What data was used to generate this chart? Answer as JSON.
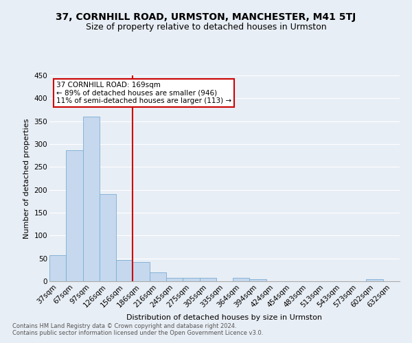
{
  "title": "37, CORNHILL ROAD, URMSTON, MANCHESTER, M41 5TJ",
  "subtitle": "Size of property relative to detached houses in Urmston",
  "xlabel": "Distribution of detached houses by size in Urmston",
  "ylabel": "Number of detached properties",
  "footnote": "Contains HM Land Registry data © Crown copyright and database right 2024.\nContains public sector information licensed under the Open Government Licence v3.0.",
  "categories": [
    "37sqm",
    "67sqm",
    "97sqm",
    "126sqm",
    "156sqm",
    "186sqm",
    "216sqm",
    "245sqm",
    "275sqm",
    "305sqm",
    "335sqm",
    "364sqm",
    "394sqm",
    "424sqm",
    "454sqm",
    "483sqm",
    "513sqm",
    "543sqm",
    "573sqm",
    "602sqm",
    "632sqm"
  ],
  "values": [
    57,
    287,
    360,
    190,
    47,
    42,
    20,
    8,
    8,
    8,
    0,
    8,
    5,
    0,
    0,
    0,
    0,
    0,
    0,
    5,
    0
  ],
  "bar_color": "#c5d8ee",
  "bar_edge_color": "#7badd4",
  "annotation_box_color": "#cc0000",
  "property_line_color": "#cc0000",
  "annotation_text": "37 CORNHILL ROAD: 169sqm\n← 89% of detached houses are smaller (946)\n11% of semi-detached houses are larger (113) →",
  "background_color": "#e8eef5",
  "grid_color": "#ffffff",
  "yticks": [
    0,
    50,
    100,
    150,
    200,
    250,
    300,
    350,
    400,
    450
  ],
  "ylim": [
    0,
    450
  ],
  "title_fontsize": 10,
  "subtitle_fontsize": 9,
  "axis_fontsize": 8,
  "tick_fontsize": 7.5
}
